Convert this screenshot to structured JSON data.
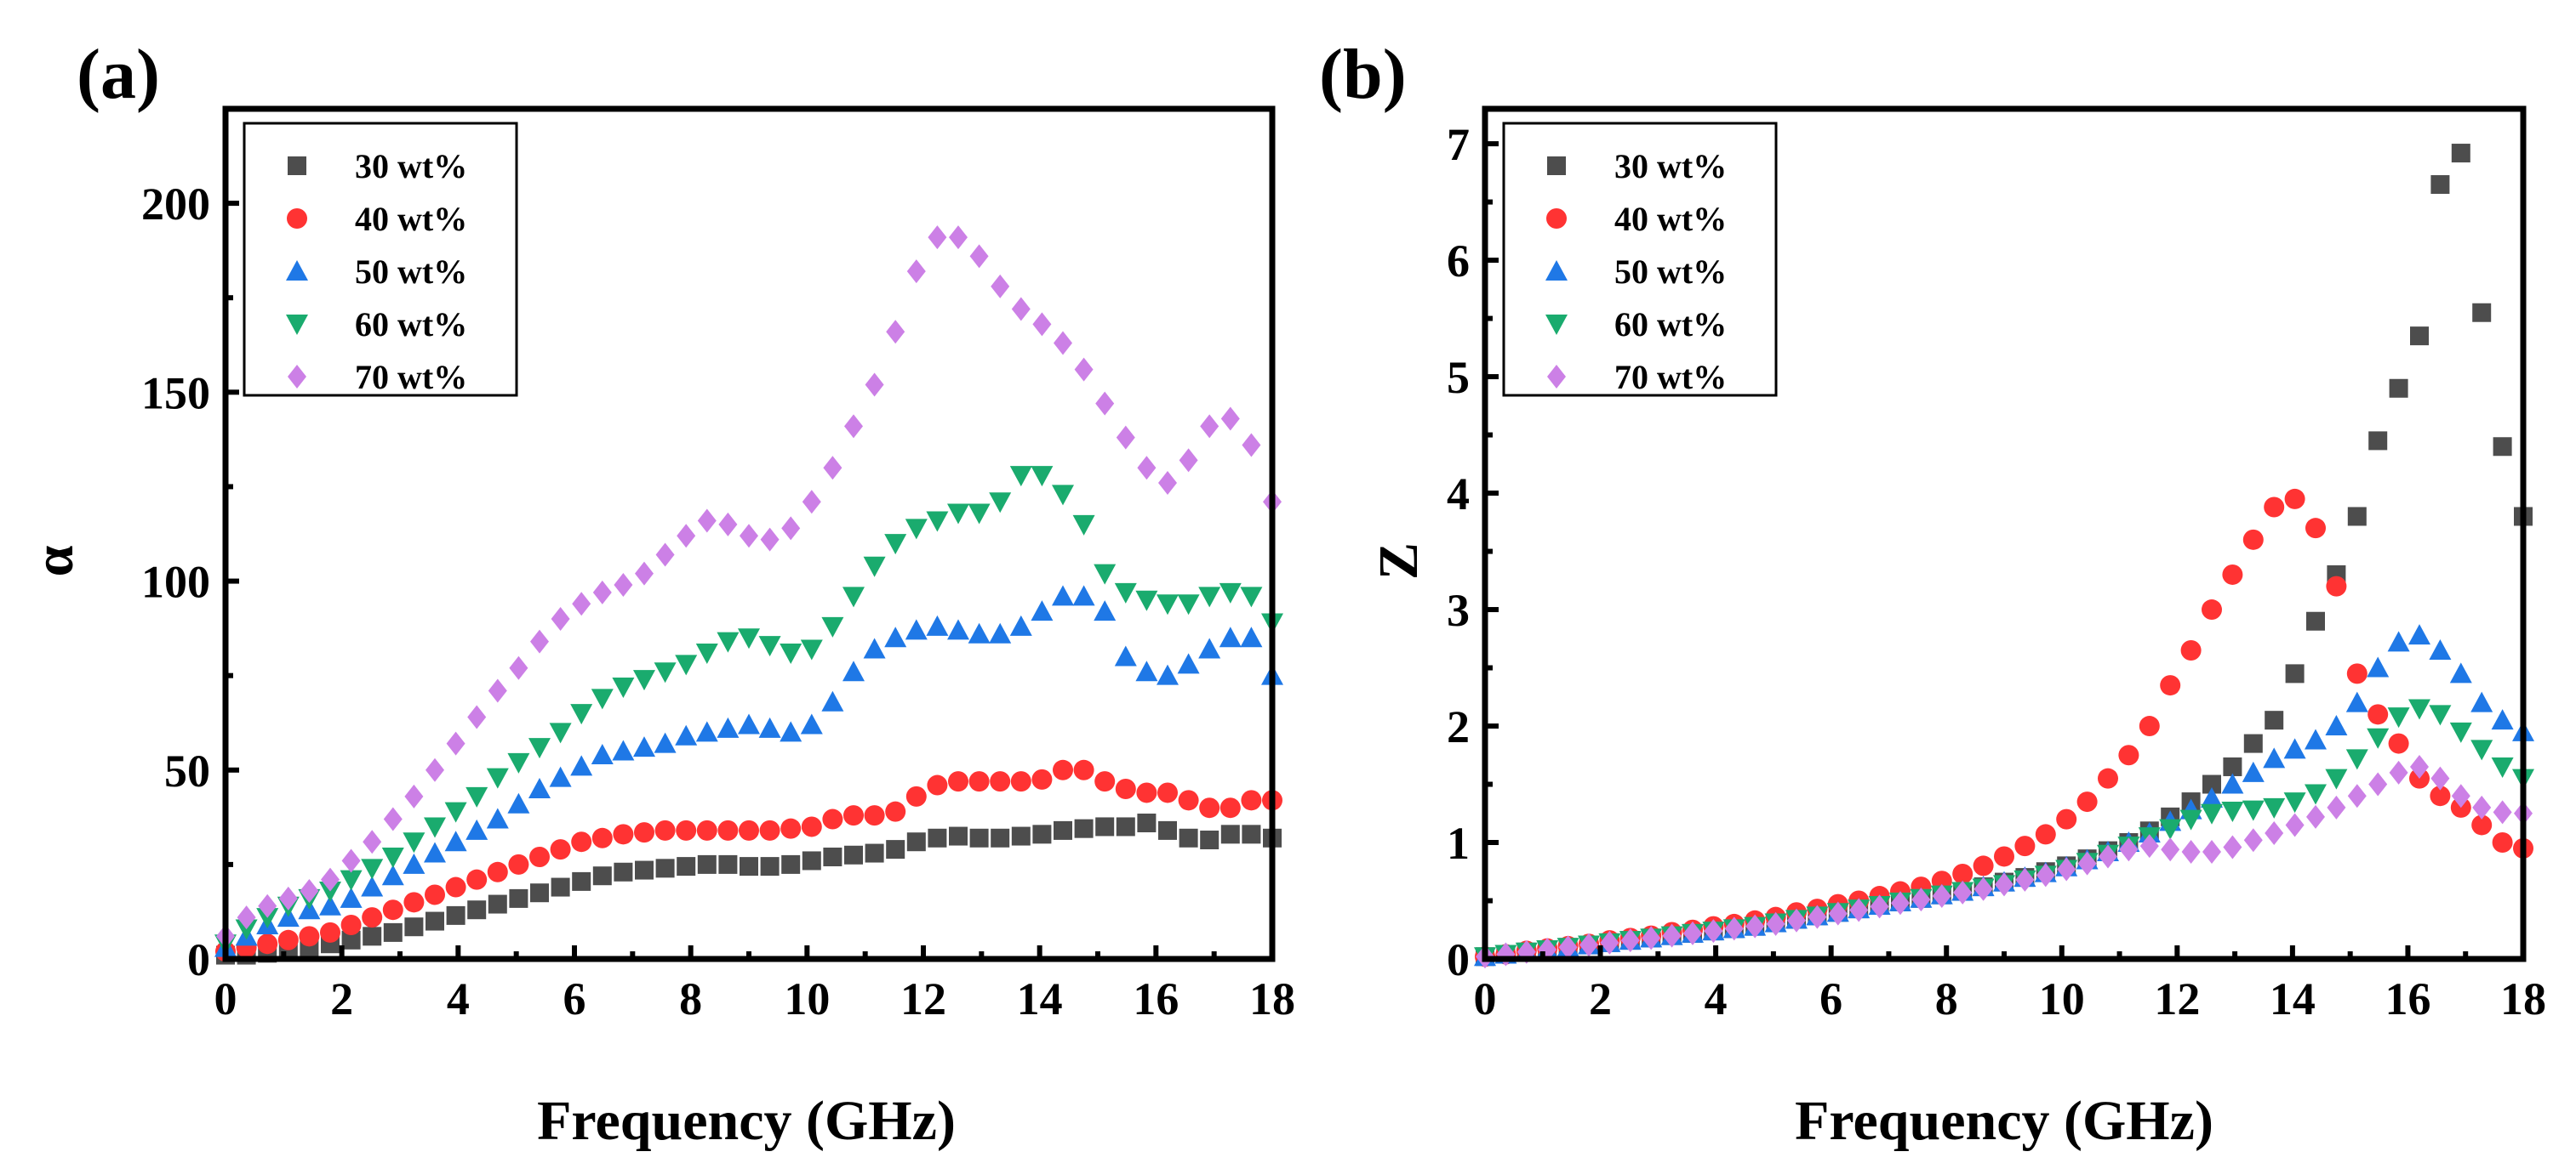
{
  "figure_title": "",
  "chart_data": [
    {
      "type": "scatter",
      "panel_label": "(a)",
      "title": "",
      "xlabel": "Frequency (GHz)",
      "ylabel": "α",
      "xlim": [
        0,
        18
      ],
      "ylim": [
        0,
        225
      ],
      "xticks": [
        "0",
        "2",
        "4",
        "6",
        "8",
        "10",
        "12",
        "14",
        "16",
        "18"
      ],
      "yticks": [
        "0",
        "50",
        "100",
        "150",
        "200"
      ],
      "legend_position": "top-left",
      "x": [
        0.0,
        0.36,
        0.72,
        1.08,
        1.44,
        1.8,
        2.16,
        2.52,
        2.88,
        3.24,
        3.6,
        3.96,
        4.32,
        4.68,
        5.04,
        5.4,
        5.76,
        6.12,
        6.48,
        6.84,
        7.2,
        7.56,
        7.92,
        8.28,
        8.64,
        9.0,
        9.36,
        9.72,
        10.08,
        10.44,
        10.8,
        11.16,
        11.52,
        11.88,
        12.24,
        12.6,
        12.96,
        13.32,
        13.68,
        14.04,
        14.4,
        14.76,
        15.12,
        15.48,
        15.84,
        16.2,
        16.56,
        16.92,
        17.28,
        17.64,
        18.0
      ],
      "series": [
        {
          "name": "30 wt%",
          "color": "#4d4d4d",
          "marker": "square",
          "values": [
            1,
            1,
            1.5,
            2,
            3,
            4,
            5,
            6,
            7,
            8.5,
            10,
            11.5,
            13,
            14.5,
            16,
            17.5,
            19,
            20.5,
            22,
            23,
            23.5,
            24,
            24.5,
            25,
            25,
            24.5,
            24.5,
            25,
            26,
            27,
            27.5,
            28,
            29,
            31,
            32,
            32.5,
            32,
            32,
            32.5,
            33,
            34,
            34.5,
            35,
            35,
            36,
            34,
            32,
            31.5,
            33,
            33,
            32
          ]
        },
        {
          "name": "40 wt%",
          "color": "#ff3333",
          "marker": "circle",
          "values": [
            2,
            3,
            4,
            5,
            6,
            7,
            9,
            11,
            13,
            15,
            17,
            19,
            21,
            23,
            25,
            27,
            29,
            31,
            32,
            33,
            33.5,
            34,
            34,
            34,
            34,
            34,
            34,
            34.5,
            35,
            37,
            38,
            38,
            39,
            43,
            46,
            47,
            47,
            47,
            47,
            47.5,
            50,
            50,
            47,
            45,
            44,
            44,
            42,
            40,
            40,
            42,
            42
          ]
        },
        {
          "name": "50 wt%",
          "color": "#1f78e6",
          "marker": "triangle-up",
          "values": [
            3,
            6,
            9,
            11,
            13,
            14,
            16,
            19,
            22,
            25,
            28,
            31,
            34,
            37,
            41,
            45,
            48,
            51,
            54,
            55,
            56,
            57,
            59,
            60,
            61,
            62,
            61,
            60,
            62,
            68,
            76,
            82,
            85,
            87,
            88,
            87,
            86,
            86,
            88,
            92,
            96,
            96,
            92,
            80,
            76,
            75,
            78,
            82,
            85,
            85,
            75
          ]
        },
        {
          "name": "60 wt%",
          "color": "#1aab6e",
          "marker": "triangle-down",
          "values": [
            4,
            8,
            11,
            14,
            16,
            18,
            21,
            24,
            27,
            31,
            35,
            39,
            43,
            48,
            52,
            56,
            60,
            65,
            69,
            72,
            74,
            76,
            78,
            81,
            84,
            85,
            83,
            81,
            82,
            88,
            96,
            104,
            110,
            114,
            116,
            118,
            118,
            121,
            128,
            128,
            123,
            115,
            102,
            97,
            95,
            94,
            94,
            96,
            97,
            96,
            89
          ]
        },
        {
          "name": "70 wt%",
          "color": "#cc80e6",
          "marker": "diamond",
          "values": [
            6,
            11,
            14,
            16,
            18,
            21,
            26,
            31,
            37,
            43,
            50,
            57,
            64,
            71,
            77,
            84,
            90,
            94,
            97,
            99,
            102,
            107,
            112,
            116,
            115,
            112,
            111,
            114,
            121,
            130,
            141,
            152,
            166,
            182,
            191,
            191,
            186,
            178,
            172,
            168,
            163,
            156,
            147,
            138,
            130,
            126,
            132,
            141,
            143,
            136,
            121
          ]
        }
      ]
    },
    {
      "type": "scatter",
      "panel_label": "(b)",
      "title": "",
      "xlabel": "Frequency (GHz)",
      "ylabel": "Z",
      "xlim": [
        0,
        18
      ],
      "ylim": [
        0,
        7.3
      ],
      "xticks": [
        "0",
        "2",
        "4",
        "6",
        "8",
        "10",
        "12",
        "14",
        "16",
        "18"
      ],
      "yticks": [
        "0",
        "1",
        "2",
        "3",
        "4",
        "5",
        "6",
        "7"
      ],
      "legend_position": "top-left",
      "x": [
        0.0,
        0.36,
        0.72,
        1.08,
        1.44,
        1.8,
        2.16,
        2.52,
        2.88,
        3.24,
        3.6,
        3.96,
        4.32,
        4.68,
        5.04,
        5.4,
        5.76,
        6.12,
        6.48,
        6.84,
        7.2,
        7.56,
        7.92,
        8.28,
        8.64,
        9.0,
        9.36,
        9.72,
        10.08,
        10.44,
        10.8,
        11.16,
        11.52,
        11.88,
        12.24,
        12.6,
        12.96,
        13.32,
        13.68,
        14.04,
        14.4,
        14.76,
        15.12,
        15.48,
        15.84,
        16.2,
        16.56,
        16.92,
        17.28,
        17.64,
        18.0
      ],
      "series": [
        {
          "name": "30 wt%",
          "color": "#4d4d4d",
          "marker": "square",
          "values": [
            0.02,
            0.04,
            0.06,
            0.08,
            0.1,
            0.12,
            0.14,
            0.16,
            0.18,
            0.2,
            0.22,
            0.24,
            0.26,
            0.28,
            0.31,
            0.34,
            0.37,
            0.4,
            0.43,
            0.46,
            0.49,
            0.52,
            0.55,
            0.58,
            0.62,
            0.66,
            0.7,
            0.75,
            0.8,
            0.86,
            0.93,
            1.0,
            1.1,
            1.22,
            1.35,
            1.5,
            1.65,
            1.85,
            2.05,
            2.45,
            2.9,
            3.3,
            3.8,
            4.45,
            4.9,
            5.35,
            6.65,
            6.92,
            5.55,
            4.4,
            3.8
          ]
        },
        {
          "name": "40 wt%",
          "color": "#ff3333",
          "marker": "circle",
          "values": [
            0.02,
            0.04,
            0.07,
            0.09,
            0.11,
            0.13,
            0.16,
            0.18,
            0.2,
            0.23,
            0.25,
            0.28,
            0.3,
            0.33,
            0.36,
            0.4,
            0.43,
            0.47,
            0.5,
            0.54,
            0.58,
            0.62,
            0.67,
            0.73,
            0.8,
            0.88,
            0.97,
            1.07,
            1.2,
            1.35,
            1.55,
            1.75,
            2.0,
            2.35,
            2.65,
            3.0,
            3.3,
            3.6,
            3.88,
            3.95,
            3.7,
            3.2,
            2.45,
            2.1,
            1.85,
            1.55,
            1.4,
            1.3,
            1.15,
            1.0,
            0.95
          ]
        },
        {
          "name": "50 wt%",
          "color": "#1f78e6",
          "marker": "triangle-up",
          "values": [
            0.02,
            0.04,
            0.06,
            0.08,
            0.1,
            0.12,
            0.14,
            0.16,
            0.18,
            0.2,
            0.22,
            0.24,
            0.26,
            0.28,
            0.31,
            0.34,
            0.37,
            0.4,
            0.43,
            0.46,
            0.49,
            0.52,
            0.55,
            0.58,
            0.62,
            0.66,
            0.7,
            0.74,
            0.79,
            0.85,
            0.92,
            1.0,
            1.08,
            1.18,
            1.28,
            1.38,
            1.5,
            1.6,
            1.72,
            1.8,
            1.88,
            2.0,
            2.2,
            2.5,
            2.72,
            2.78,
            2.65,
            2.45,
            2.2,
            2.05,
            1.95
          ]
        },
        {
          "name": "60 wt%",
          "color": "#1aab6e",
          "marker": "triangle-down",
          "values": [
            0.02,
            0.04,
            0.06,
            0.08,
            0.1,
            0.12,
            0.14,
            0.16,
            0.18,
            0.2,
            0.22,
            0.24,
            0.26,
            0.28,
            0.31,
            0.34,
            0.37,
            0.4,
            0.43,
            0.46,
            0.49,
            0.52,
            0.55,
            0.58,
            0.61,
            0.64,
            0.68,
            0.72,
            0.77,
            0.83,
            0.9,
            0.97,
            1.05,
            1.12,
            1.2,
            1.25,
            1.27,
            1.28,
            1.3,
            1.35,
            1.42,
            1.55,
            1.72,
            1.9,
            2.08,
            2.15,
            2.1,
            1.95,
            1.8,
            1.65,
            1.55
          ]
        },
        {
          "name": "70 wt%",
          "color": "#cc80e6",
          "marker": "diamond",
          "values": [
            0.02,
            0.04,
            0.06,
            0.08,
            0.1,
            0.12,
            0.14,
            0.16,
            0.18,
            0.2,
            0.22,
            0.24,
            0.26,
            0.28,
            0.3,
            0.33,
            0.36,
            0.39,
            0.42,
            0.45,
            0.48,
            0.51,
            0.54,
            0.57,
            0.6,
            0.64,
            0.68,
            0.72,
            0.77,
            0.82,
            0.88,
            0.94,
            0.97,
            0.94,
            0.92,
            0.92,
            0.96,
            1.02,
            1.08,
            1.15,
            1.22,
            1.3,
            1.4,
            1.5,
            1.6,
            1.65,
            1.55,
            1.4,
            1.3,
            1.26,
            1.25
          ]
        }
      ]
    }
  ]
}
